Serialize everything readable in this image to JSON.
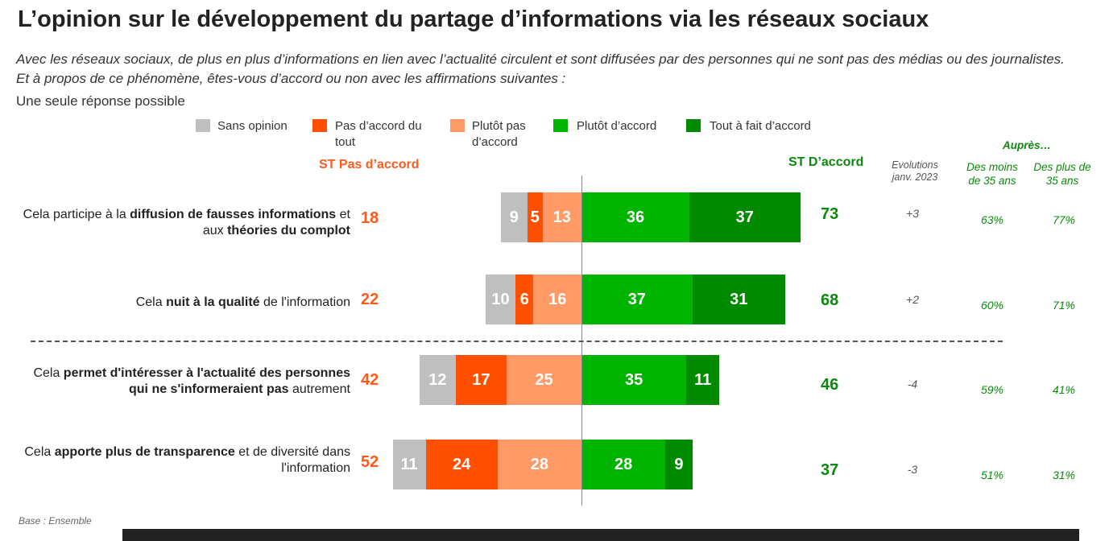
{
  "header": {
    "title": "L’opinion sur le développement du partage d’informations via les réseaux sociaux",
    "subtitle": "Avec les réseaux sociaux, de plus en plus d’informations en lien avec l’actualité circulent et sont diffusées par des personnes qui ne sont pas des médias ou des journalistes. Et à propos de ce phénomène, êtes-vous d’accord ou non avec les affirmations suivantes :",
    "note": "Une seule réponse possible"
  },
  "legend": [
    {
      "label": "Sans opinion",
      "color": "#bfbfbf"
    },
    {
      "label": "Pas d’accord du tout",
      "color": "#ff5000"
    },
    {
      "label": "Plutôt pas d’accord",
      "color": "#ff9966"
    },
    {
      "label": "Plutôt d’accord",
      "color": "#00b400"
    },
    {
      "label": "Tout à fait d’accord",
      "color": "#008a00"
    }
  ],
  "columns": {
    "st_pas_accord": "ST Pas d’accord",
    "st_accord": "ST D’accord",
    "evolutions": "Evolutions janv. 2023",
    "aupres": "Auprès…",
    "moins35": "Des moins de 35 ans",
    "plus35": "Des plus de 35 ans"
  },
  "chart_data": {
    "type": "bar",
    "orientation": "horizontal-diverging",
    "categories": [
      "Cela participe à la diffusion de fausses informations et aux théories du complot",
      "Cela nuit à la qualité de l'information",
      "Cela permet d'intéresser à l'actualité des personnes qui ne s'informeraient pas autrement",
      "Cela apporte plus de transparence et de diversité dans l'information"
    ],
    "series": [
      {
        "name": "Sans opinion",
        "values": [
          9,
          10,
          12,
          11
        ]
      },
      {
        "name": "Pas d’accord du tout",
        "values": [
          5,
          6,
          17,
          24
        ]
      },
      {
        "name": "Plutôt pas d’accord",
        "values": [
          13,
          16,
          25,
          28
        ]
      },
      {
        "name": "Plutôt d’accord",
        "values": [
          36,
          37,
          35,
          28
        ]
      },
      {
        "name": "Tout à fait d’accord",
        "values": [
          37,
          31,
          11,
          9
        ]
      }
    ],
    "st_pas_accord": [
      18,
      22,
      42,
      52
    ],
    "st_accord": [
      73,
      68,
      46,
      37
    ],
    "evolutions": [
      "+3",
      "+2",
      "-4",
      "-3"
    ],
    "moins_35": [
      "63%",
      "60%",
      "59%",
      "51%"
    ],
    "plus_35": [
      "77%",
      "71%",
      "41%",
      "31%"
    ],
    "legend_position": "top"
  },
  "rows": [
    {
      "pre": "Cela participe à la ",
      "b1": "diffusion de fausses",
      "mid": " ",
      "b2": "informations",
      "post": " et aux ",
      "b3": "théories du complot",
      "end": ""
    },
    {
      "pre": "Cela ",
      "b1": "nuit à la qualité",
      "mid": " de l'information",
      "b2": "",
      "post": "",
      "b3": "",
      "end": ""
    },
    {
      "pre": "Cela ",
      "b1": "permet d'intéresser à l'actualité des personnes qui ne s'informeraient pas",
      "mid": " autrement",
      "b2": "",
      "post": "",
      "b3": "",
      "end": ""
    },
    {
      "pre": "Cela ",
      "b1": "apporte plus de transparence",
      "mid": " et de diversité dans l'information",
      "b2": "",
      "post": "",
      "b3": "",
      "end": ""
    }
  ],
  "footer": {
    "base": "Base : Ensemble"
  }
}
